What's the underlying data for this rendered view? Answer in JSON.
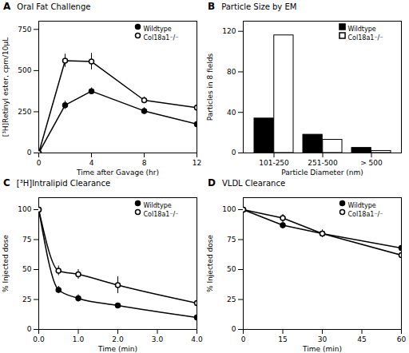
{
  "chart_data": [
    {
      "type": "line",
      "title": "Oral Fat Challenge",
      "annotations": [
        "A"
      ],
      "xlabel": "Time after Gavage (hr)",
      "ylabel": "[³H]Retinyl ester, cpm/10µL",
      "x": [
        0,
        2,
        4,
        8,
        12
      ],
      "series": [
        {
          "name": "Wildtype",
          "color": "black",
          "marker": "circle",
          "line_style": "solid",
          "values": [
            0,
            290,
            375,
            255,
            175
          ],
          "errors": [
            0,
            25,
            20,
            20,
            20
          ]
        },
        {
          "name": "Col18a1⁻/⁻",
          "color": "white",
          "marker": "circle",
          "line_style": "solid",
          "values": [
            0,
            560,
            555,
            320,
            275
          ],
          "errors": [
            0,
            40,
            50,
            20,
            15
          ]
        }
      ],
      "xlim": [
        0,
        12
      ],
      "ylim": [
        0,
        800
      ],
      "xticks": [
        0,
        4,
        8,
        12
      ],
      "yticks": [
        0,
        250,
        500,
        750
      ],
      "legend": "upper right"
    },
    {
      "type": "bar",
      "title": "Particle Size by EM",
      "annotations": [
        "B"
      ],
      "xlabel": "Particle Diameter (nm)",
      "ylabel": "Particles in 8 fields",
      "categories": [
        "101-250",
        "251-500",
        "> 500"
      ],
      "series": [
        {
          "name": "Wildtype",
          "color": "black",
          "values": [
            34,
            18,
            5
          ]
        },
        {
          "name": "Col18a1⁻/⁻",
          "color": "white",
          "values": [
            116,
            13,
            2
          ]
        }
      ],
      "ylim": [
        0,
        130
      ],
      "yticks": [
        0,
        40,
        80,
        120
      ],
      "legend": "upper right"
    },
    {
      "type": "line",
      "title": "[³H]Intralipid Clearance",
      "annotations": [
        "C"
      ],
      "xlabel": "Time (min)",
      "ylabel": "% Injected dose",
      "x": [
        0,
        0.5,
        1,
        2,
        4
      ],
      "series": [
        {
          "name": "Wildtype",
          "color": "black",
          "marker": "circle",
          "line_style": "smooth",
          "values": [
            100,
            33,
            26,
            20,
            10
          ],
          "errors": [
            0,
            3,
            3,
            2,
            1
          ]
        },
        {
          "name": "Col18a1⁻/⁻",
          "color": "white",
          "marker": "circle",
          "line_style": "smooth",
          "values": [
            100,
            49,
            46,
            37,
            22
          ],
          "errors": [
            0,
            4,
            4,
            7,
            2
          ]
        }
      ],
      "xlim": [
        0,
        4
      ],
      "ylim": [
        0,
        110
      ],
      "xticks": [
        0,
        1,
        2,
        3,
        4
      ],
      "yticks": [
        0,
        25,
        50,
        75,
        100
      ],
      "legend": "upper right"
    },
    {
      "type": "line",
      "title": "VLDL Clearance",
      "annotations": [
        "D"
      ],
      "xlabel": "Time (min)",
      "ylabel": "% Injected dose",
      "x": [
        0,
        15,
        30,
        60
      ],
      "series": [
        {
          "name": "Wildtype",
          "color": "black",
          "marker": "circle",
          "line_style": "solid",
          "values": [
            100,
            87,
            80,
            68
          ],
          "errors": [
            0,
            3,
            3,
            3
          ]
        },
        {
          "name": "Col18a1⁻/⁻",
          "color": "white",
          "marker": "circle",
          "line_style": "solid",
          "values": [
            100,
            93,
            80,
            62
          ],
          "errors": [
            0,
            3,
            3,
            3
          ]
        }
      ],
      "xlim": [
        0,
        60
      ],
      "ylim": [
        0,
        110
      ],
      "xticks": [
        0,
        15,
        30,
        45,
        60
      ],
      "yticks": [
        0,
        25,
        50,
        75,
        100
      ],
      "legend": "upper right"
    }
  ]
}
